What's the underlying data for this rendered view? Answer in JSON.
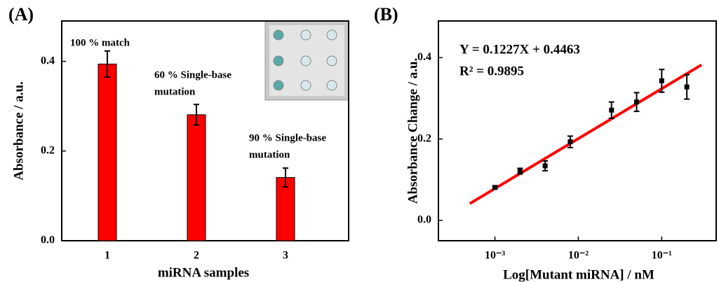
{
  "chart_data": [
    {
      "type": "bar",
      "title": "(A)",
      "x_label": "miRNA samples",
      "y_label": "Absorbance / a.u.",
      "categories": [
        "1",
        "2",
        "3"
      ],
      "values": [
        0.394,
        0.281,
        0.141
      ],
      "errors": [
        0.029,
        0.023,
        0.021
      ],
      "color": "#ff0000",
      "ylim": [
        0,
        0.49
      ],
      "yticks": [
        {
          "value": 0,
          "label": "0.0"
        },
        0.2,
        0.4
      ],
      "annotations": [
        [
          "100 % match"
        ],
        [
          "60 % Single-base",
          "mutation"
        ],
        [
          "90 % Single-base",
          "mutation"
        ]
      ]
    },
    {
      "type": "scatter",
      "title": "(B)",
      "x_label": "Log[Mutant miRNA] / nM",
      "y_label": "Absorbance Change / a.u.",
      "x": [
        0.001,
        0.002,
        0.004,
        0.008,
        0.025,
        0.05,
        0.1,
        0.2
      ],
      "values": [
        0.081,
        0.121,
        0.134,
        0.193,
        0.271,
        0.291,
        0.343,
        0.328
      ],
      "errors": [
        0.004,
        0.007,
        0.012,
        0.014,
        0.02,
        0.023,
        0.028,
        0.03
      ],
      "color": "#000000",
      "log_x": true,
      "xlim": [
        0.00021,
        0.45
      ],
      "ylim": [
        -0.05,
        0.49
      ],
      "xticks": [
        {
          "value": 0.001,
          "label": "10⁻³"
        },
        {
          "value": 0.01,
          "label": "10⁻²"
        },
        {
          "value": 0.1,
          "label": "10⁻¹"
        }
      ],
      "yticks": [
        {
          "value": 0,
          "label": "0.0"
        },
        0.2,
        0.4
      ],
      "equation": "Y = 0.1227X + 0.4463",
      "r_squared": "R² = 0.9895",
      "fit": {
        "slope": 0.1227,
        "intercept": 0.4463,
        "x_range": [
          0.0005,
          0.3
        ],
        "color": "#ff0000"
      }
    }
  ]
}
